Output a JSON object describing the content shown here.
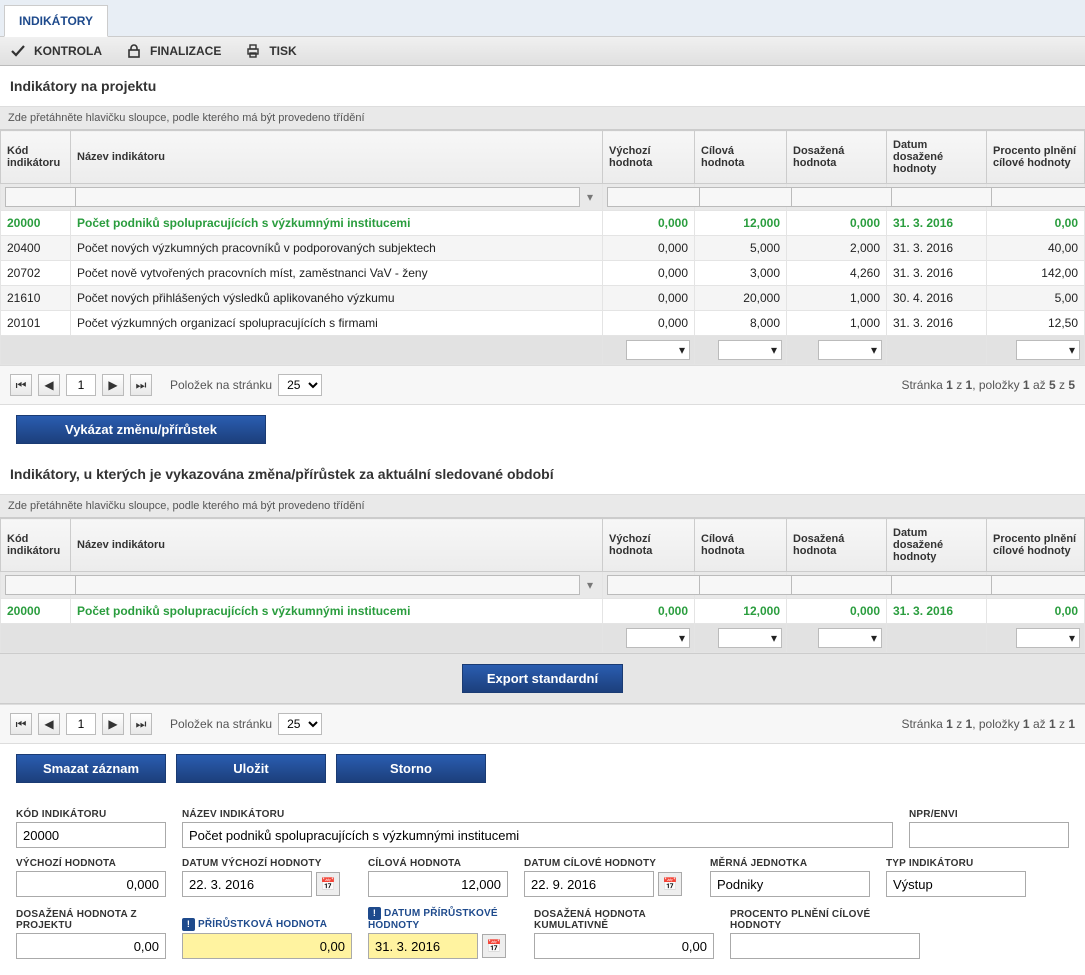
{
  "tab": "INDIKÁTORY",
  "toolbar": {
    "kontrola": "KONTROLA",
    "finalizace": "FINALIZACE",
    "tisk": "TISK"
  },
  "section1_title": "Indikátory na projektu",
  "drag_hint": "Zde přetáhněte hlavičku sloupce, podle kterého má být provedeno třídění",
  "cols": {
    "kod": "Kód indikátoru",
    "nazev": "Název indikátoru",
    "vychozi": "Výchozí hodnota",
    "cilova": "Cílová hodnota",
    "dosazena": "Dosažená hodnota",
    "datum": "Datum dosažené hodnoty",
    "procento": "Procento plnění cílové hodnoty"
  },
  "rows1": [
    {
      "kod": "20000",
      "nazev": "Počet podniků spolupracujících s výzkumnými institucemi",
      "vychozi": "0,000",
      "cilova": "12,000",
      "dosazena": "0,000",
      "datum": "31. 3. 2016",
      "procento": "0,00",
      "hl": true
    },
    {
      "kod": "20400",
      "nazev": "Počet nových výzkumných pracovníků v podporovaných subjektech",
      "vychozi": "0,000",
      "cilova": "5,000",
      "dosazena": "2,000",
      "datum": "31. 3. 2016",
      "procento": "40,00"
    },
    {
      "kod": "20702",
      "nazev": "Počet nově vytvořených pracovních míst, zaměstnanci VaV - ženy",
      "vychozi": "0,000",
      "cilova": "3,000",
      "dosazena": "4,260",
      "datum": "31. 3. 2016",
      "procento": "142,00"
    },
    {
      "kod": "21610",
      "nazev": "Počet nových přihlášených výsledků aplikovaného výzkumu",
      "vychozi": "0,000",
      "cilova": "20,000",
      "dosazena": "1,000",
      "datum": "30. 4. 2016",
      "procento": "5,00"
    },
    {
      "kod": "20101",
      "nazev": "Počet výzkumných organizací spolupracujících s firmami",
      "vychozi": "0,000",
      "cilova": "8,000",
      "dosazena": "1,000",
      "datum": "31. 3. 2016",
      "procento": "12,50"
    }
  ],
  "pager": {
    "items_label": "Položek na stránku",
    "page_size": "25",
    "page": "1",
    "info_prefix": "Stránka ",
    "info_mid": " z ",
    "info_total": "1",
    "items_prefix": ", položky ",
    "items_from": "1",
    "items_to": " až ",
    "items_to_n": "5",
    "items_of": " z ",
    "items_of_n": "5"
  },
  "btn_vykazat": "Vykázat změnu/přírůstek",
  "section2_title": "Indikátory, u kterých je vykazována změna/přírůstek za aktuální sledované období",
  "rows2": [
    {
      "kod": "20000",
      "nazev": "Počet podniků spolupracujících s výzkumnými institucemi",
      "vychozi": "0,000",
      "cilova": "12,000",
      "dosazena": "0,000",
      "datum": "31. 3. 2016",
      "procento": "0,00",
      "hl": true
    }
  ],
  "btn_export": "Export standardní",
  "pager2_items_to_n": "1",
  "pager2_items_of_n": "1",
  "btn_smazat": "Smazat záznam",
  "btn_ulozit": "Uložit",
  "btn_storno": "Storno",
  "form": {
    "kod_l": "KÓD INDIKÁTORU",
    "kod_v": "20000",
    "nazev_l": "NÁZEV INDIKÁTORU",
    "nazev_v": "Počet podniků spolupracujících s výzkumnými institucemi",
    "npr_l": "NPR/ENVI",
    "npr_v": "",
    "vychozi_l": "VÝCHOZÍ HODNOTA",
    "vychozi_v": "0,000",
    "datvych_l": "DATUM VÝCHOZÍ HODNOTY",
    "datvych_v": "22. 3. 2016",
    "cilova_l": "CÍLOVÁ HODNOTA",
    "cilova_v": "12,000",
    "datcil_l": "DATUM CÍLOVÉ HODNOTY",
    "datcil_v": "22. 9. 2016",
    "merna_l": "MĚRNÁ JEDNOTKA",
    "merna_v": "Podniky",
    "typ_l": "TYP INDIKÁTORU",
    "typ_v": "Výstup",
    "dosproj_l": "DOSAŽENÁ HODNOTA Z PROJEKTU",
    "dosproj_v": "0,00",
    "prir_l": "PŘÍRŮSTKOVÁ HODNOTA",
    "prir_v": "0,00",
    "datprir_l": "DATUM PŘÍRŮSTKOVÉ HODNOTY",
    "datprir_v": "31. 3. 2016",
    "doskum_l": "DOSAŽENÁ HODNOTA KUMULATIVNĚ",
    "doskum_v": "0,00",
    "proc_l": "PROCENTO PLNĚNÍ CÍLOVÉ HODNOTY",
    "proc_v": ""
  }
}
